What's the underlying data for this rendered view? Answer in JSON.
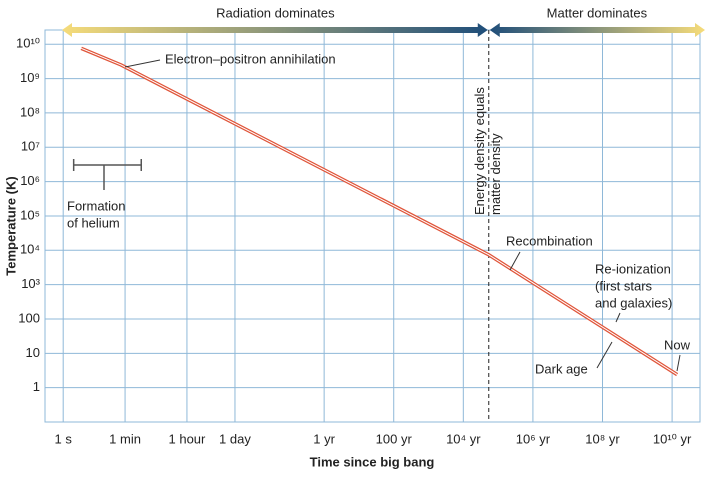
{
  "chart_data": {
    "type": "line",
    "xlabel": "Time since big bang",
    "ylabel": "Temperature (K)",
    "log_x": true,
    "log_y": true,
    "grid": true,
    "xlim": [
      0.3,
      2e+18
    ],
    "ylim": [
      0.1,
      26000000000.0
    ],
    "xticks": [
      {
        "value": 1,
        "label": "1 s"
      },
      {
        "value": 60,
        "label": "1 min"
      },
      {
        "value": 3600,
        "label": "1 hour"
      },
      {
        "value": 86400,
        "label": "1 day"
      },
      {
        "value": 31560000,
        "label": "1 yr"
      },
      {
        "value": 3156000000,
        "label": "100 yr"
      },
      {
        "value": 315600000000,
        "label": "10⁴ yr"
      },
      {
        "value": 31560000000000,
        "label": "10⁶ yr"
      },
      {
        "value": 3156000000000000,
        "label": "10⁸ yr"
      },
      {
        "value": 315600000000000000,
        "label": "10¹⁰ yr"
      }
    ],
    "yticks": [
      1,
      10,
      100,
      {
        "value": 1000,
        "label": "10³"
      },
      {
        "value": 10000,
        "label": "10⁴"
      },
      {
        "value": 100000,
        "label": "10⁵"
      },
      {
        "value": 1000000,
        "label": "10⁶"
      },
      {
        "value": 10000000,
        "label": "10⁷"
      },
      {
        "value": 100000000,
        "label": "10⁸"
      },
      {
        "value": 1000000000,
        "label": "10⁹"
      },
      {
        "value": 10000000000,
        "label": "10¹⁰"
      }
    ],
    "series": [
      {
        "color": "#e0553a",
        "x": [
          3.3,
          46,
          1700000000000,
          440000000000000000
        ],
        "values": [
          7600000000,
          2500000000,
          7400,
          2.4
        ]
      }
    ],
    "vline": {
      "x": 1700000000000,
      "label": [
        "Energy density equals",
        "matter density"
      ]
    },
    "eras": [
      "Radiation dominates",
      "Matter dominates"
    ],
    "annotations": [
      {
        "text": [
          "Electron–positron annihilation"
        ]
      },
      {
        "text": [
          "Formation",
          "of helium"
        ],
        "span": [
          2,
          175
        ]
      },
      {
        "text": [
          "Recombination"
        ]
      },
      {
        "text": [
          "Re-ionization",
          "(first stars",
          "and galaxies)"
        ]
      },
      {
        "text": [
          "Dark age"
        ]
      },
      {
        "text": [
          "Now"
        ]
      }
    ]
  }
}
